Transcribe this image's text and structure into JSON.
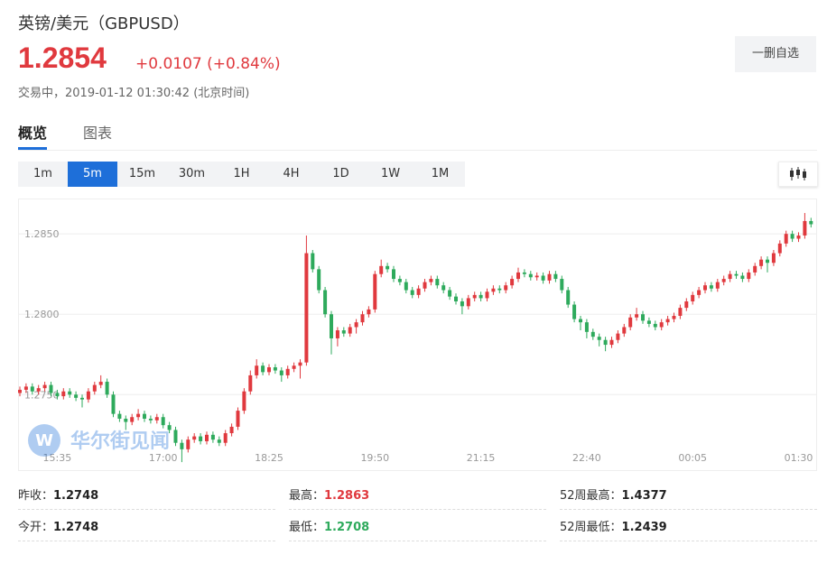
{
  "header": {
    "title": "英镑/美元（GBPUSD）",
    "price": "1.2854",
    "change": "+0.0107 (+0.84%)",
    "status": "交易中，2019-01-12 01:30:42 (北京时间)",
    "button": "一删自选"
  },
  "tabs": [
    "概览",
    "图表"
  ],
  "intervals": [
    "1m",
    "5m",
    "15m",
    "30m",
    "1H",
    "4H",
    "1D",
    "1W",
    "1M"
  ],
  "active_interval": "5m",
  "watermark": "华尔街见闻",
  "stats": [
    [
      {
        "label": "昨收：",
        "value": "1.2748"
      },
      {
        "label": "最高：",
        "value": "1.2863"
      },
      {
        "label": "52周最高：",
        "value": "1.4377"
      }
    ],
    [
      {
        "label": "今开：",
        "value": "1.2748"
      },
      {
        "label": "最低：",
        "value": "1.2708"
      },
      {
        "label": "52周最低：",
        "value": "1.2439"
      }
    ]
  ],
  "chart_data": {
    "type": "candlestick",
    "up_color": "#e0393e",
    "down_color": "#2eaa5c",
    "ylim": [
      1.2703,
      1.2872
    ],
    "yticks": [
      {
        "value": 1.285,
        "label": "1.2850"
      },
      {
        "value": 1.28,
        "label": "1.2800"
      },
      {
        "value": 1.275,
        "label": "1.2750"
      }
    ],
    "xticks": [
      {
        "value": 6,
        "label": "15:35"
      },
      {
        "value": 23,
        "label": "17:00"
      },
      {
        "value": 40,
        "label": "18:25"
      },
      {
        "value": 57,
        "label": "19:50"
      },
      {
        "value": 74,
        "label": "21:15"
      },
      {
        "value": 91,
        "label": "22:40"
      },
      {
        "value": 108,
        "label": "00:05"
      },
      {
        "value": 125,
        "label": "01:30"
      }
    ],
    "grid": true,
    "ohlc": [
      [
        1.2751,
        1.2755,
        1.2749,
        1.2753
      ],
      [
        1.2753,
        1.2757,
        1.2751,
        1.2755
      ],
      [
        1.2755,
        1.2757,
        1.275,
        1.2752
      ],
      [
        1.2752,
        1.2756,
        1.275,
        1.2754
      ],
      [
        1.2754,
        1.2758,
        1.2752,
        1.2756
      ],
      [
        1.2756,
        1.2758,
        1.2749,
        1.2751
      ],
      [
        1.2751,
        1.2753,
        1.2747,
        1.2749
      ],
      [
        1.2749,
        1.2754,
        1.2747,
        1.2752
      ],
      [
        1.2752,
        1.2754,
        1.2748,
        1.275
      ],
      [
        1.275,
        1.2752,
        1.2746,
        1.2748
      ],
      [
        1.2748,
        1.275,
        1.2742,
        1.2747
      ],
      [
        1.2747,
        1.2754,
        1.2745,
        1.2752
      ],
      [
        1.2752,
        1.2758,
        1.275,
        1.2756
      ],
      [
        1.2756,
        1.2762,
        1.2754,
        1.2758
      ],
      [
        1.2758,
        1.276,
        1.2748,
        1.275
      ],
      [
        1.275,
        1.2752,
        1.2736,
        1.2738
      ],
      [
        1.2738,
        1.274,
        1.2733,
        1.2735
      ],
      [
        1.2735,
        1.2737,
        1.2728,
        1.2733
      ],
      [
        1.2733,
        1.2738,
        1.2731,
        1.2736
      ],
      [
        1.2736,
        1.2741,
        1.2734,
        1.2738
      ],
      [
        1.2738,
        1.274,
        1.2733,
        1.2735
      ],
      [
        1.2735,
        1.2737,
        1.2732,
        1.2734
      ],
      [
        1.2734,
        1.2738,
        1.2732,
        1.2736
      ],
      [
        1.2736,
        1.2738,
        1.2729,
        1.2731
      ],
      [
        1.2731,
        1.2733,
        1.2726,
        1.2728
      ],
      [
        1.2728,
        1.273,
        1.2718,
        1.272
      ],
      [
        1.272,
        1.2722,
        1.2708,
        1.2716
      ],
      [
        1.2716,
        1.2724,
        1.2714,
        1.2722
      ],
      [
        1.2722,
        1.2726,
        1.272,
        1.2724
      ],
      [
        1.2724,
        1.2726,
        1.2719,
        1.2721
      ],
      [
        1.2721,
        1.2727,
        1.2719,
        1.2725
      ],
      [
        1.2725,
        1.2727,
        1.272,
        1.2722
      ],
      [
        1.2722,
        1.2724,
        1.2718,
        1.272
      ],
      [
        1.272,
        1.2728,
        1.2718,
        1.2726
      ],
      [
        1.2726,
        1.2732,
        1.2724,
        1.273
      ],
      [
        1.273,
        1.2742,
        1.2728,
        1.274
      ],
      [
        1.274,
        1.2754,
        1.2738,
        1.2752
      ],
      [
        1.2752,
        1.2765,
        1.275,
        1.2762
      ],
      [
        1.2762,
        1.2772,
        1.276,
        1.2768
      ],
      [
        1.2768,
        1.277,
        1.2762,
        1.2764
      ],
      [
        1.2764,
        1.2769,
        1.2762,
        1.2767
      ],
      [
        1.2767,
        1.2769,
        1.2763,
        1.2765
      ],
      [
        1.2765,
        1.2767,
        1.2758,
        1.2762
      ],
      [
        1.2762,
        1.2768,
        1.276,
        1.2766
      ],
      [
        1.2766,
        1.277,
        1.2764,
        1.2768
      ],
      [
        1.2768,
        1.2772,
        1.276,
        1.277
      ],
      [
        1.277,
        1.2849,
        1.2768,
        1.2838
      ],
      [
        1.2838,
        1.284,
        1.2826,
        1.2828
      ],
      [
        1.2828,
        1.283,
        1.2813,
        1.2815
      ],
      [
        1.2815,
        1.2817,
        1.2798,
        1.28
      ],
      [
        1.28,
        1.2802,
        1.2775,
        1.2785
      ],
      [
        1.2785,
        1.2792,
        1.278,
        1.279
      ],
      [
        1.279,
        1.2792,
        1.2786,
        1.2788
      ],
      [
        1.2788,
        1.2794,
        1.2786,
        1.2792
      ],
      [
        1.2792,
        1.2797,
        1.2788,
        1.2795
      ],
      [
        1.2795,
        1.2802,
        1.2793,
        1.28
      ],
      [
        1.28,
        1.2805,
        1.2798,
        1.2803
      ],
      [
        1.2803,
        1.2827,
        1.2801,
        1.2825
      ],
      [
        1.2825,
        1.2834,
        1.2823,
        1.283
      ],
      [
        1.283,
        1.2832,
        1.2826,
        1.2828
      ],
      [
        1.2828,
        1.283,
        1.282,
        1.2822
      ],
      [
        1.2822,
        1.2824,
        1.2818,
        1.282
      ],
      [
        1.282,
        1.2822,
        1.2813,
        1.2815
      ],
      [
        1.2815,
        1.2817,
        1.281,
        1.2812
      ],
      [
        1.2812,
        1.2818,
        1.281,
        1.2816
      ],
      [
        1.2816,
        1.2822,
        1.2814,
        1.282
      ],
      [
        1.282,
        1.2824,
        1.2818,
        1.2822
      ],
      [
        1.2822,
        1.2824,
        1.2816,
        1.2818
      ],
      [
        1.2818,
        1.282,
        1.2813,
        1.2815
      ],
      [
        1.2815,
        1.2817,
        1.2809,
        1.2811
      ],
      [
        1.2811,
        1.2813,
        1.2806,
        1.2808
      ],
      [
        1.2808,
        1.281,
        1.28,
        1.2805
      ],
      [
        1.2805,
        1.2812,
        1.2803,
        1.281
      ],
      [
        1.281,
        1.2814,
        1.2808,
        1.2812
      ],
      [
        1.2812,
        1.2814,
        1.2808,
        1.281
      ],
      [
        1.281,
        1.2816,
        1.2808,
        1.2814
      ],
      [
        1.2814,
        1.2818,
        1.2812,
        1.2816
      ],
      [
        1.2816,
        1.2818,
        1.2813,
        1.2815
      ],
      [
        1.2815,
        1.282,
        1.2813,
        1.2818
      ],
      [
        1.2818,
        1.2824,
        1.2816,
        1.2822
      ],
      [
        1.2822,
        1.2829,
        1.282,
        1.2826
      ],
      [
        1.2826,
        1.2828,
        1.2823,
        1.2825
      ],
      [
        1.2825,
        1.2827,
        1.2821,
        1.2823
      ],
      [
        1.2823,
        1.2826,
        1.2821,
        1.2824
      ],
      [
        1.2824,
        1.2826,
        1.2819,
        1.2821
      ],
      [
        1.2821,
        1.2827,
        1.2819,
        1.2825
      ],
      [
        1.2825,
        1.2827,
        1.282,
        1.2822
      ],
      [
        1.2822,
        1.2824,
        1.2813,
        1.2815
      ],
      [
        1.2815,
        1.2817,
        1.2804,
        1.2806
      ],
      [
        1.2806,
        1.2808,
        1.2795,
        1.2797
      ],
      [
        1.2797,
        1.2799,
        1.279,
        1.2795
      ],
      [
        1.2795,
        1.2797,
        1.2785,
        1.2789
      ],
      [
        1.2789,
        1.2791,
        1.2784,
        1.2786
      ],
      [
        1.2786,
        1.2788,
        1.278,
        1.2784
      ],
      [
        1.2784,
        1.2786,
        1.2777,
        1.2781
      ],
      [
        1.2781,
        1.2786,
        1.2779,
        1.2784
      ],
      [
        1.2784,
        1.279,
        1.2782,
        1.2788
      ],
      [
        1.2788,
        1.2794,
        1.2786,
        1.2792
      ],
      [
        1.2792,
        1.28,
        1.279,
        1.2798
      ],
      [
        1.2798,
        1.2804,
        1.2796,
        1.28
      ],
      [
        1.28,
        1.2802,
        1.2794,
        1.2796
      ],
      [
        1.2796,
        1.2798,
        1.2792,
        1.2794
      ],
      [
        1.2794,
        1.2796,
        1.279,
        1.2792
      ],
      [
        1.2792,
        1.2797,
        1.279,
        1.2795
      ],
      [
        1.2795,
        1.2799,
        1.2793,
        1.2797
      ],
      [
        1.2797,
        1.2801,
        1.2795,
        1.2799
      ],
      [
        1.2799,
        1.2806,
        1.2797,
        1.2804
      ],
      [
        1.2804,
        1.281,
        1.2802,
        1.2808
      ],
      [
        1.2808,
        1.2814,
        1.2806,
        1.2812
      ],
      [
        1.2812,
        1.2817,
        1.281,
        1.2815
      ],
      [
        1.2815,
        1.282,
        1.2813,
        1.2818
      ],
      [
        1.2818,
        1.282,
        1.2814,
        1.2816
      ],
      [
        1.2816,
        1.2822,
        1.2814,
        1.282
      ],
      [
        1.282,
        1.2824,
        1.2818,
        1.2822
      ],
      [
        1.2822,
        1.2827,
        1.282,
        1.2825
      ],
      [
        1.2825,
        1.2827,
        1.2822,
        1.2824
      ],
      [
        1.2824,
        1.2826,
        1.282,
        1.2822
      ],
      [
        1.2822,
        1.2828,
        1.282,
        1.2826
      ],
      [
        1.2826,
        1.2832,
        1.2824,
        1.283
      ],
      [
        1.283,
        1.2836,
        1.2828,
        1.2834
      ],
      [
        1.2834,
        1.2836,
        1.2826,
        1.2832
      ],
      [
        1.2832,
        1.284,
        1.283,
        1.2838
      ],
      [
        1.2838,
        1.2846,
        1.2836,
        1.2844
      ],
      [
        1.2844,
        1.2852,
        1.2842,
        1.285
      ],
      [
        1.285,
        1.2852,
        1.2845,
        1.2847
      ],
      [
        1.2847,
        1.2851,
        1.2845,
        1.2849
      ],
      [
        1.2849,
        1.2863,
        1.2847,
        1.2858
      ],
      [
        1.2858,
        1.286,
        1.2854,
        1.2856
      ]
    ]
  }
}
